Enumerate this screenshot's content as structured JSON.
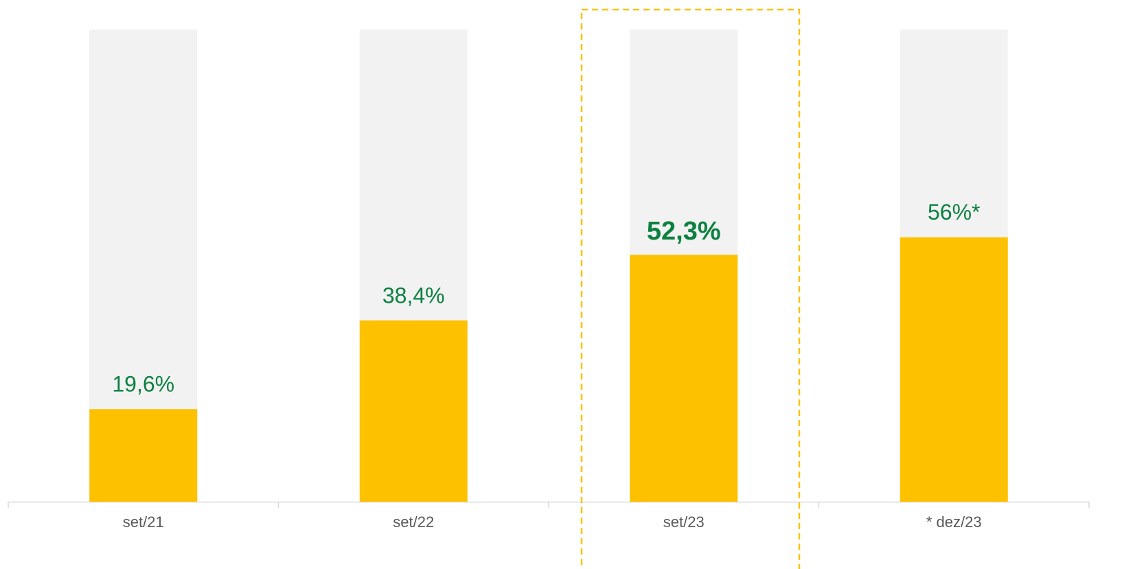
{
  "chart_data": {
    "type": "bar",
    "categories": [
      "set/21",
      "set/22",
      "set/23",
      "* dez/23"
    ],
    "values": [
      19.6,
      38.4,
      52.3,
      56
    ],
    "value_labels": [
      "19,6%",
      "38,4%",
      "52,3%",
      "56%*"
    ],
    "color": "#fdc100",
    "ylim": [
      0,
      100
    ]
  }
}
